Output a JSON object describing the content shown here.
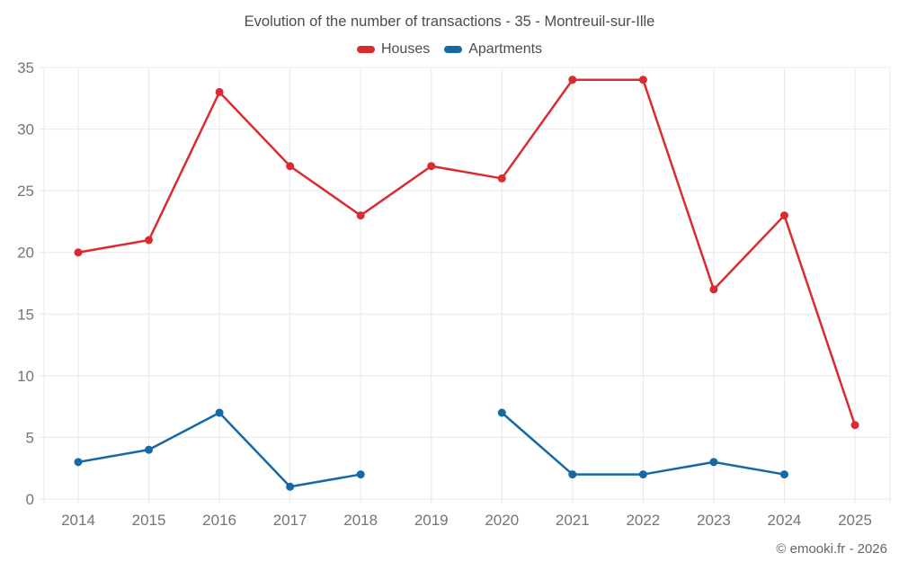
{
  "title": "Evolution of the number of transactions - 35 - Montreuil-sur-Ille",
  "legend": [
    {
      "label": "Houses",
      "color": "#da2c30"
    },
    {
      "label": "Apartments",
      "color": "#1569a5"
    }
  ],
  "footer": {
    "copyright": "© emooki.fr - 2026"
  },
  "colors": {
    "grid": "#e8e8e8",
    "tick_label": "#757575",
    "title_text": "#4c4c4c",
    "houses": "#da2c30",
    "apartments": "#1569a5"
  },
  "chart_data": {
    "type": "line",
    "title": "Evolution of the number of transactions - 35 - Montreuil-sur-Ille",
    "xlabel": "",
    "ylabel": "",
    "x": [
      2014,
      2015,
      2016,
      2017,
      2018,
      2019,
      2020,
      2021,
      2022,
      2023,
      2024,
      2025
    ],
    "series": [
      {
        "name": "Houses",
        "color": "#da2c30",
        "values": [
          20,
          21,
          33,
          27,
          23,
          27,
          26,
          34,
          34,
          17,
          23,
          6
        ]
      },
      {
        "name": "Apartments",
        "color": "#1569a5",
        "values": [
          3,
          4,
          7,
          1,
          2,
          null,
          7,
          2,
          2,
          3,
          2,
          null
        ]
      }
    ],
    "ylim": [
      0,
      35
    ],
    "yticks": [
      0,
      5,
      10,
      15,
      20,
      25,
      30,
      35
    ],
    "grid": true,
    "legend_position": "top",
    "markers": true
  }
}
